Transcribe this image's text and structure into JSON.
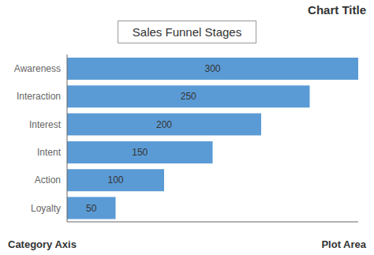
{
  "chart_data": {
    "type": "bar",
    "orientation": "horizontal",
    "title": "Chart Title",
    "subtitle": "Sales Funnel Stages",
    "annotations": [
      "Category Axis",
      "Plot Area"
    ],
    "categories": [
      "Awareness",
      "Interaction",
      "Interest",
      "Intent",
      "Action",
      "Loyalty"
    ],
    "values": [
      300,
      250,
      200,
      150,
      100,
      50
    ],
    "color": "#5B9BD5",
    "xlim": [
      0,
      300
    ],
    "data_labels": true,
    "tick_labels": "y"
  }
}
